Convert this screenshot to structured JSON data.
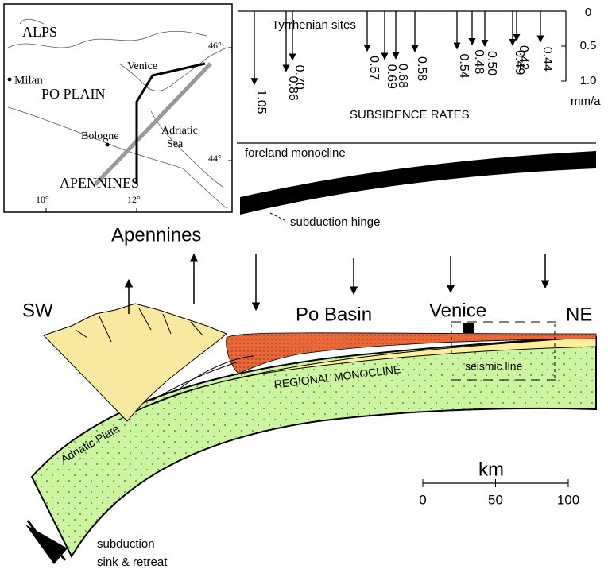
{
  "map": {
    "labels": [
      "ALPS",
      "Milan",
      "PO PLAIN",
      "Venice",
      "Bologne",
      "Adriatic",
      "Sea",
      "APENNINES"
    ],
    "latitudes": [
      "46°",
      "44°"
    ],
    "longitudes": [
      "10°",
      "12°"
    ]
  },
  "subsidence": {
    "title": "Tyrrhenian sites",
    "axis_label": "SUBSIDENCE RATES",
    "unit": "mm/a",
    "ylim": [
      0,
      1
    ],
    "yticks": [
      0,
      0.5,
      {
        "value": 1,
        "label": "1.0"
      }
    ],
    "values": [
      1.05,
      0.86,
      0.7,
      0.57,
      0.69,
      0.68,
      0.58,
      0.54,
      0.48,
      0.5,
      0.49,
      0.42,
      0.44
    ],
    "value_labels": [
      "1.05",
      "0.86",
      "0.70",
      "0.57",
      "0.69",
      "0.68",
      "0.58",
      "0.54",
      "0.48",
      "0.50",
      "0.49",
      "0.42",
      "0.44"
    ]
  },
  "section": {
    "foreland": "foreland monocline",
    "hinge": "subduction hinge",
    "mountains": "Apennines",
    "sw": "SW",
    "basin": "Po Basin",
    "city": "Venice",
    "ne": "NE",
    "monocline": "REGIONAL MONOCLINE",
    "seismic": "seismic line",
    "plate": "Adriatic Plate",
    "subduction": [
      "subduction",
      "sink & retreat"
    ]
  },
  "scale_bar": {
    "label": "km",
    "ticks": [
      0,
      50,
      100
    ]
  }
}
